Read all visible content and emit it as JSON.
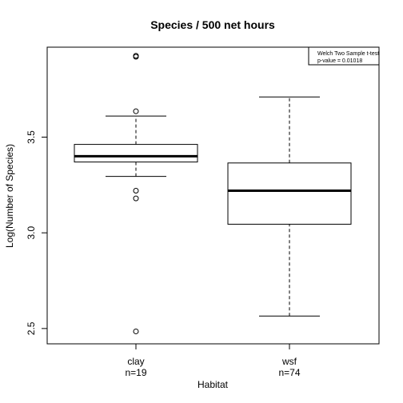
{
  "chart_data": {
    "type": "boxplot",
    "title": "Species / 500 net hours",
    "xlabel": "Habitat",
    "ylabel": "Log(Number of Species)",
    "ylim": [
      2.42,
      3.97
    ],
    "yticks": [
      2.5,
      3.0,
      3.5
    ],
    "ytick_labels": [
      "2.5",
      "3.0",
      "3.5"
    ],
    "grid": false,
    "legend": {
      "position": "top-right",
      "lines": [
        "Welch Two Sample t-test",
        "p-value = 0.01018"
      ]
    },
    "groups": [
      {
        "label": "clay",
        "n_label": "n=19",
        "whisker_low": 3.295,
        "q1": 3.37,
        "median": 3.4,
        "q3": 3.462,
        "whisker_high": 3.61,
        "outliers": [
          3.92,
          3.925,
          3.635,
          3.22,
          3.18,
          2.485
        ]
      },
      {
        "label": "wsf",
        "n_label": "n=74",
        "whisker_low": 2.565,
        "q1": 3.045,
        "median": 3.22,
        "q3": 3.365,
        "whisker_high": 3.71,
        "outliers": []
      }
    ]
  }
}
